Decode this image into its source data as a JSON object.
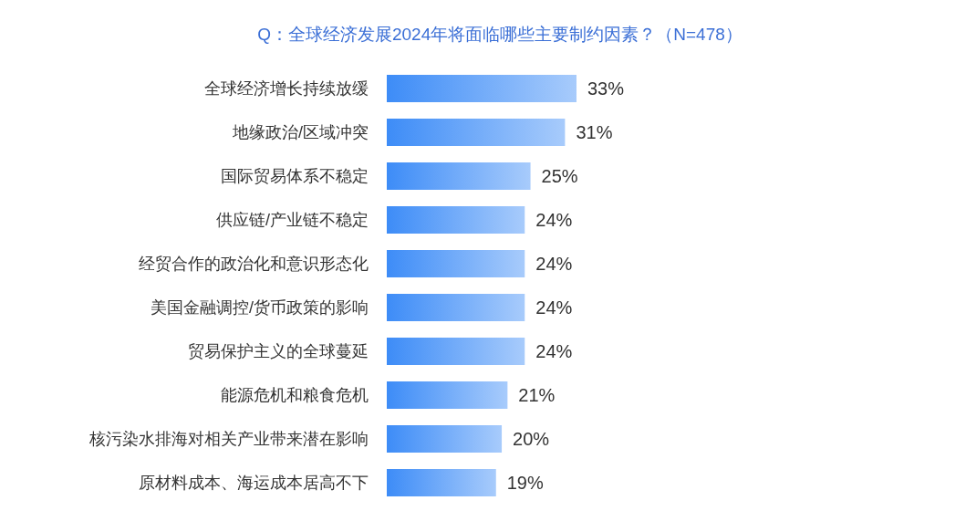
{
  "chart_data": {
    "type": "bar",
    "orientation": "horizontal",
    "title": "Q：全球经济发展2024年将面临哪些主要制约因素？（N=478）",
    "categories": [
      "全球经济增长持续放缓",
      "地缘政治/区域冲突",
      "国际贸易体系不稳定",
      "供应链/产业链不稳定",
      "经贸合作的政治化和意识形态化",
      "美国金融调控/货币政策的影响",
      "贸易保护主义的全球蔓延",
      "能源危机和粮食危机",
      "核污染水排海对相关产业带来潜在影响",
      "原材料成本、海运成本居高不下"
    ],
    "values": [
      33,
      31,
      25,
      24,
      24,
      24,
      24,
      21,
      20,
      19
    ],
    "value_labels": [
      "33%",
      "31%",
      "25%",
      "24%",
      "24%",
      "24%",
      "24%",
      "21%",
      "20%",
      "19%"
    ],
    "color": "#3d8cf7",
    "grid": false,
    "legend": false
  }
}
